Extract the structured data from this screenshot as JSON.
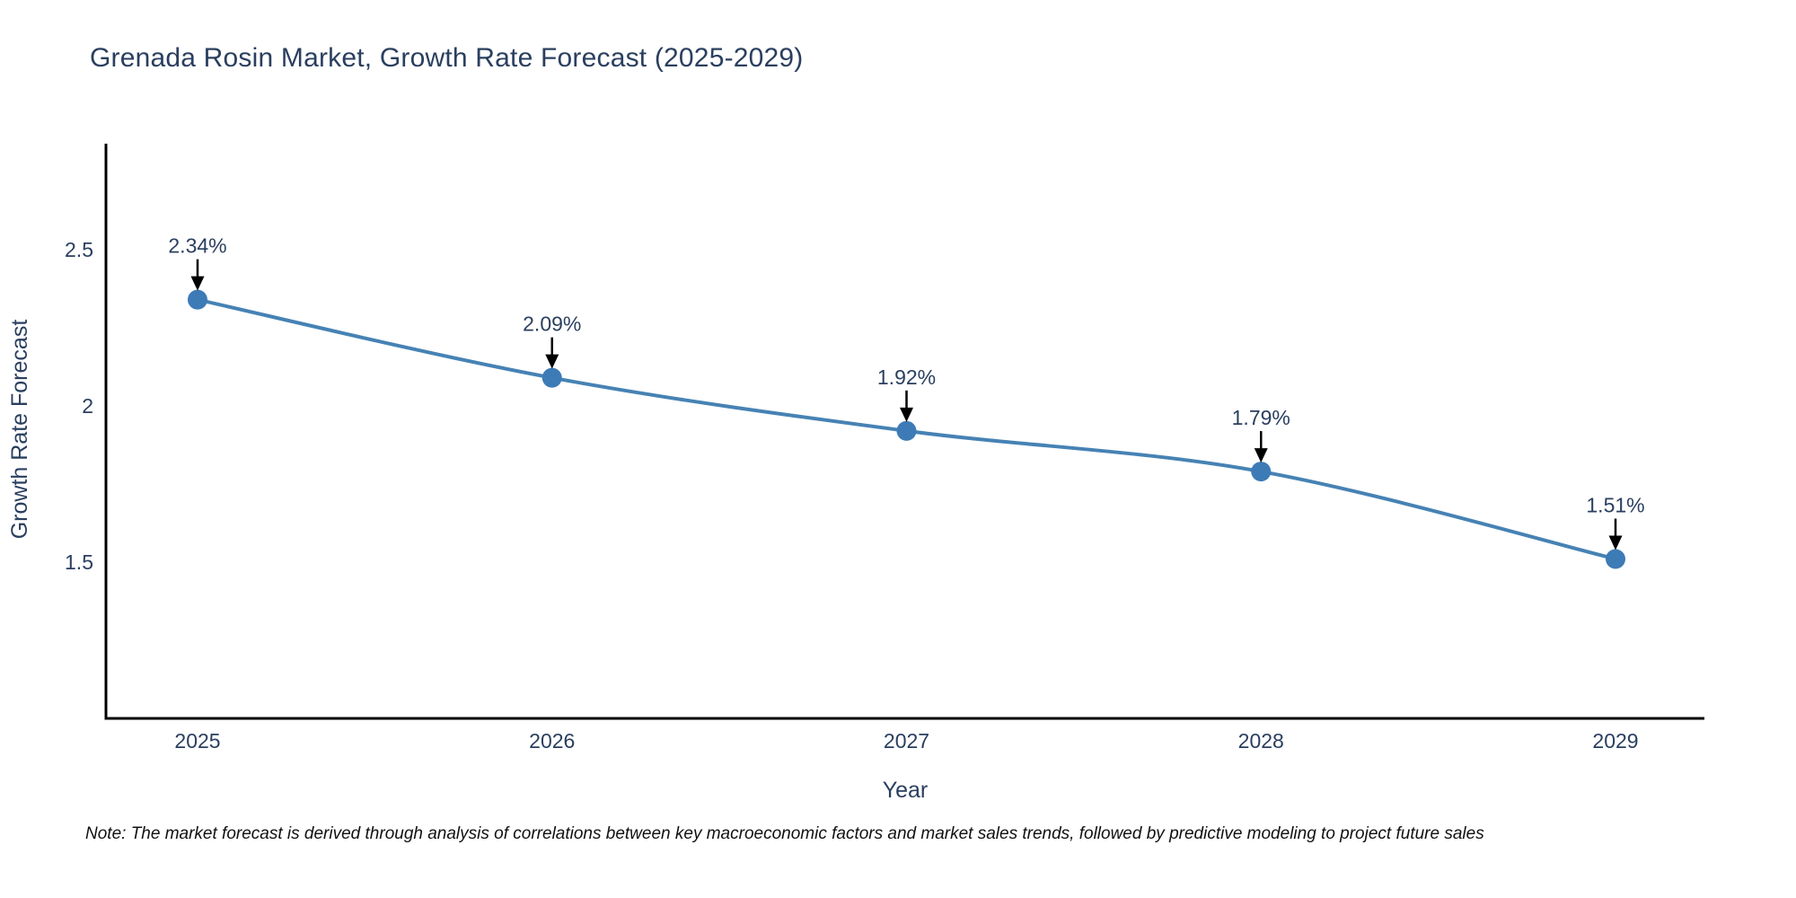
{
  "chart_data": {
    "type": "line",
    "title": "Grenada Rosin Market, Growth Rate Forecast (2025-2029)",
    "xlabel": "Year",
    "ylabel": "Growth Rate Forecast",
    "x": [
      2025,
      2026,
      2027,
      2028,
      2029
    ],
    "series": [
      {
        "name": "Growth Rate Forecast",
        "values": [
          2.34,
          2.09,
          1.92,
          1.79,
          1.51
        ]
      }
    ],
    "point_labels": [
      "2.34%",
      "2.09%",
      "1.92%",
      "1.79%",
      "1.51%"
    ],
    "xtick_labels": [
      "2025",
      "2026",
      "2027",
      "2028",
      "2029"
    ],
    "ytick_values": [
      2.5,
      2.0,
      1.5
    ],
    "ytick_labels": [
      "2.5",
      "2",
      "1.5"
    ],
    "xlim": [
      2024.74,
      2029.26
    ],
    "ylim": [
      1.0,
      2.84
    ],
    "grid": false,
    "legend": "none",
    "line_shape": "spline",
    "line_color": "#4682b4",
    "marker_color": "#3d7bb6",
    "arrow_color": "#000000",
    "axis_color": "#000000",
    "text_color": "#2a3f5f"
  },
  "note": {
    "text": "Note: The market forecast is derived through analysis of correlations between key macroeconomic factors and market sales trends, followed by predictive modeling to project future sales"
  }
}
